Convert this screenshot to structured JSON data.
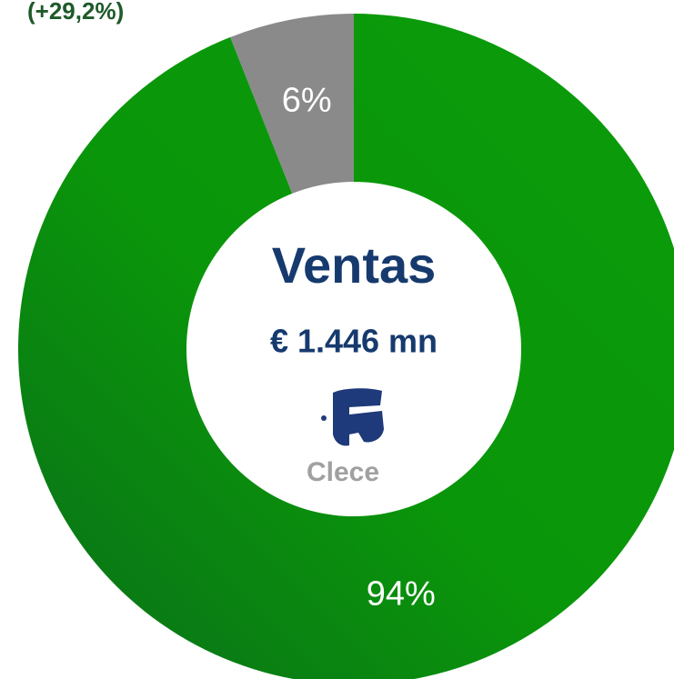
{
  "chart_data": {
    "type": "donut",
    "annotation": "(+29,2%)",
    "center_title": "Ventas",
    "center_subtitle": "€ 1.446 mn",
    "logo_text": "Clece",
    "values": [
      94,
      6
    ],
    "value_labels": [
      "94%",
      "6%"
    ],
    "colors": [
      "#0a960a",
      "#8a8a8a"
    ]
  }
}
